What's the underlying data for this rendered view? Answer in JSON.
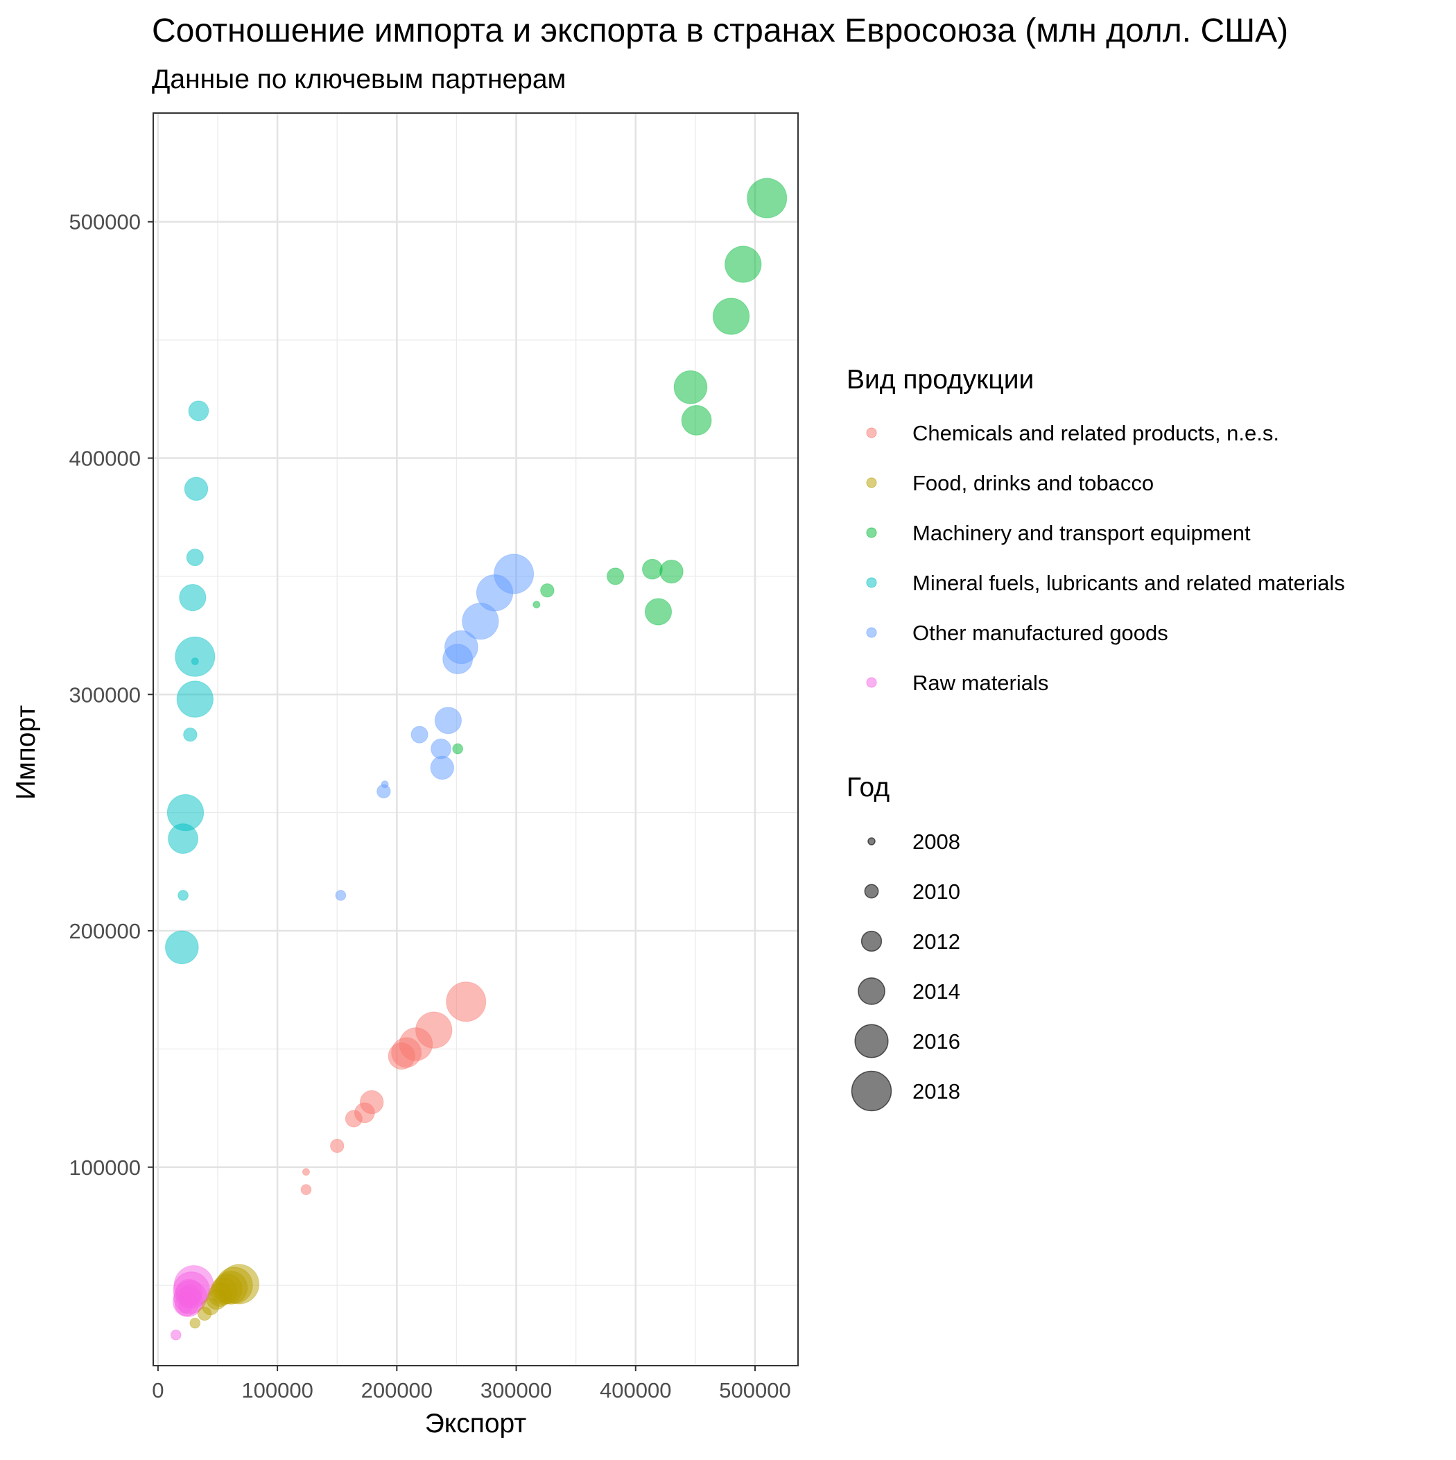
{
  "chart_data": {
    "type": "scatter",
    "title": "Соотношение импорта и экспорта в странах Евросоюза (млн долл. США)",
    "subtitle": "Данные по ключевым партнерам",
    "xlabel": "Экспорт",
    "ylabel": "Импорт",
    "xlim": [
      -4000,
      536000
    ],
    "ylim": [
      16000,
      546000
    ],
    "x_ticks": [
      0,
      100000,
      200000,
      300000,
      400000,
      500000
    ],
    "y_ticks": [
      100000,
      200000,
      300000,
      400000,
      500000
    ],
    "grid": true,
    "legend_position": "right",
    "legend_color_title": "Вид продукции",
    "legend_size_title": "Год",
    "size_legend": [
      2008,
      2010,
      2012,
      2014,
      2016,
      2018
    ],
    "series": [
      {
        "name": "Chemicals and related products, n.e.s.",
        "color": "#F8766D",
        "points": [
          {
            "x": 124000,
            "y": 98000,
            "year": 2008
          },
          {
            "x": 124000,
            "y": 90500,
            "year": 2009
          },
          {
            "x": 150000,
            "y": 109000,
            "year": 2010
          },
          {
            "x": 164000,
            "y": 120500,
            "year": 2011
          },
          {
            "x": 173000,
            "y": 123000,
            "year": 2012
          },
          {
            "x": 179000,
            "y": 127500,
            "year": 2013
          },
          {
            "x": 204000,
            "y": 147000,
            "year": 2014
          },
          {
            "x": 208000,
            "y": 148500,
            "year": 2015
          },
          {
            "x": 216000,
            "y": 152000,
            "year": 2016
          },
          {
            "x": 231000,
            "y": 158000,
            "year": 2017
          },
          {
            "x": 258000,
            "y": 170000,
            "year": 2018
          }
        ]
      },
      {
        "name": "Food, drinks and tobacco",
        "color": "#B79F00",
        "points": [
          {
            "x": 31000,
            "y": 34000,
            "year": 2009
          },
          {
            "x": 39000,
            "y": 38000,
            "year": 2010
          },
          {
            "x": 44000,
            "y": 41000,
            "year": 2011
          },
          {
            "x": 49000,
            "y": 44000,
            "year": 2012
          },
          {
            "x": 52000,
            "y": 46000,
            "year": 2013
          },
          {
            "x": 55000,
            "y": 47500,
            "year": 2014
          },
          {
            "x": 58000,
            "y": 48500,
            "year": 2015
          },
          {
            "x": 61000,
            "y": 49000,
            "year": 2016
          },
          {
            "x": 64000,
            "y": 50000,
            "year": 2017
          },
          {
            "x": 68000,
            "y": 50500,
            "year": 2018
          }
        ]
      },
      {
        "name": "Machinery and transport equipment",
        "color": "#00BA38",
        "points": [
          {
            "x": 317000,
            "y": 338000,
            "year": 2008
          },
          {
            "x": 251000,
            "y": 277000,
            "year": 2009
          },
          {
            "x": 326000,
            "y": 344000,
            "year": 2010
          },
          {
            "x": 383000,
            "y": 350000,
            "year": 2011
          },
          {
            "x": 414000,
            "y": 353000,
            "year": 2012
          },
          {
            "x": 430000,
            "y": 352000,
            "year": 2013
          },
          {
            "x": 419000,
            "y": 335000,
            "year": 2014
          },
          {
            "x": 451000,
            "y": 416000,
            "year": 2015
          },
          {
            "x": 446000,
            "y": 430000,
            "year": 2016
          },
          {
            "x": 480000,
            "y": 460000,
            "year": 2017
          },
          {
            "x": 490000,
            "y": 482000,
            "year": 2017
          },
          {
            "x": 510000,
            "y": 510000,
            "year": 2018
          }
        ]
      },
      {
        "name": "Mineral fuels, lubricants and related materials",
        "color": "#00BFC4",
        "points": [
          {
            "x": 31000,
            "y": 314000,
            "year": 2008
          },
          {
            "x": 21000,
            "y": 215000,
            "year": 2009
          },
          {
            "x": 27000,
            "y": 283000,
            "year": 2010
          },
          {
            "x": 31000,
            "y": 358000,
            "year": 2011
          },
          {
            "x": 34000,
            "y": 420000,
            "year": 2012
          },
          {
            "x": 32000,
            "y": 387000,
            "year": 2013
          },
          {
            "x": 29000,
            "y": 341000,
            "year": 2014
          },
          {
            "x": 21000,
            "y": 239000,
            "year": 2015
          },
          {
            "x": 20000,
            "y": 193000,
            "year": 2016
          },
          {
            "x": 23000,
            "y": 250000,
            "year": 2017
          },
          {
            "x": 31000,
            "y": 298000,
            "year": 2017
          },
          {
            "x": 31000,
            "y": 316000,
            "year": 2018
          }
        ]
      },
      {
        "name": "Other manufactured goods",
        "color": "#619CFF",
        "points": [
          {
            "x": 190000,
            "y": 262000,
            "year": 2008
          },
          {
            "x": 153000,
            "y": 215000,
            "year": 2009
          },
          {
            "x": 189000,
            "y": 259000,
            "year": 2010
          },
          {
            "x": 219000,
            "y": 283000,
            "year": 2011
          },
          {
            "x": 237000,
            "y": 277000,
            "year": 2012
          },
          {
            "x": 238000,
            "y": 269000,
            "year": 2013
          },
          {
            "x": 243000,
            "y": 289000,
            "year": 2014
          },
          {
            "x": 251000,
            "y": 315000,
            "year": 2015
          },
          {
            "x": 254000,
            "y": 320000,
            "year": 2016
          },
          {
            "x": 270000,
            "y": 331000,
            "year": 2017
          },
          {
            "x": 282000,
            "y": 343000,
            "year": 2017
          },
          {
            "x": 298000,
            "y": 351000,
            "year": 2018
          }
        ]
      },
      {
        "name": "Raw materials",
        "color": "#F564E3",
        "points": [
          {
            "x": 15000,
            "y": 29000,
            "year": 2009
          },
          {
            "x": 23000,
            "y": 41000,
            "year": 2010
          },
          {
            "x": 25000,
            "y": 44000,
            "year": 2011
          },
          {
            "x": 27000,
            "y": 46000,
            "year": 2012
          },
          {
            "x": 24000,
            "y": 42000,
            "year": 2013
          },
          {
            "x": 26000,
            "y": 47000,
            "year": 2014
          },
          {
            "x": 25000,
            "y": 43000,
            "year": 2015
          },
          {
            "x": 27000,
            "y": 45000,
            "year": 2016
          },
          {
            "x": 28000,
            "y": 48000,
            "year": 2017
          },
          {
            "x": 30000,
            "y": 50000,
            "year": 2018
          }
        ]
      }
    ]
  }
}
